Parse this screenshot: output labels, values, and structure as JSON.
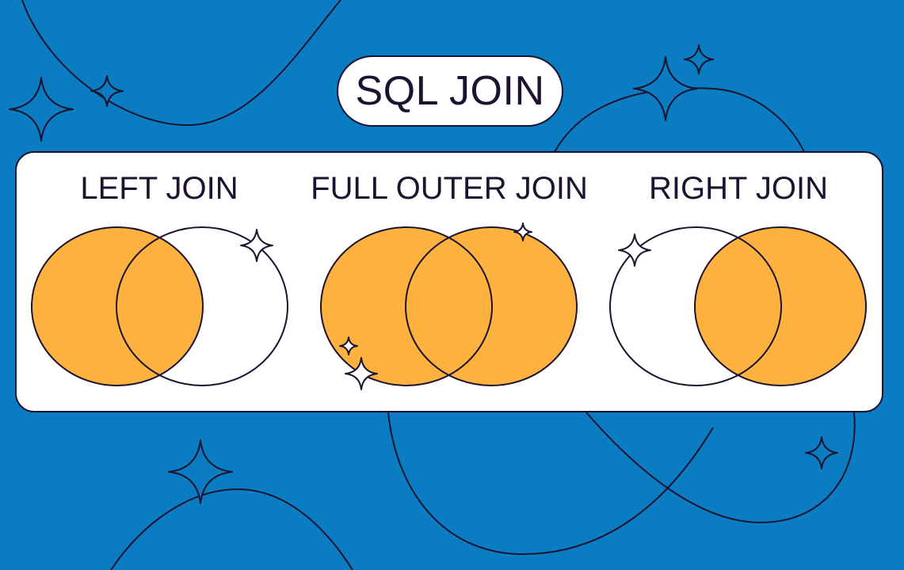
{
  "title": "SQL JOIN",
  "joins": [
    {
      "id": "left",
      "label": "LEFT JOIN",
      "left_filled": true,
      "overlap_filled": true,
      "right_filled": false
    },
    {
      "id": "full",
      "label": "FULL OUTER JOIN",
      "left_filled": true,
      "overlap_filled": true,
      "right_filled": true
    },
    {
      "id": "right",
      "label": "RIGHT JOIN",
      "left_filled": false,
      "overlap_filled": true,
      "right_filled": true
    }
  ],
  "colors": {
    "background": "#0a7cc1",
    "panel": "#ffffff",
    "fill": "#fdb240",
    "stroke": "#1d1330"
  }
}
